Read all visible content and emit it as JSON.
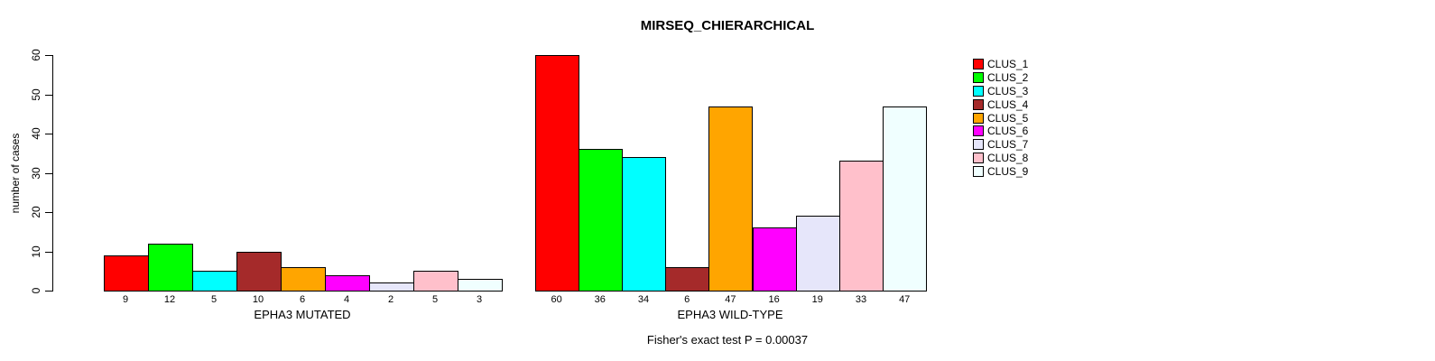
{
  "figure": {
    "background": "#ffffff",
    "text_color": "#000000"
  },
  "chart_data": {
    "type": "bar",
    "title": "MIRSEQ_CHIERARCHICAL",
    "ylabel": "number of cases",
    "xlabel": "",
    "ylim": [
      0,
      60
    ],
    "yticks": [
      0,
      10,
      20,
      30,
      40,
      50,
      60
    ],
    "grid": false,
    "bar_borders": "#000000",
    "categories": [
      "CLUS_1",
      "CLUS_2",
      "CLUS_3",
      "CLUS_4",
      "CLUS_5",
      "CLUS_6",
      "CLUS_7",
      "CLUS_8",
      "CLUS_9"
    ],
    "colors": [
      "#FF0000",
      "#00FF00",
      "#00FFFF",
      "#A52A2A",
      "#FFA500",
      "#FF00FF",
      "#E6E6FA",
      "#FFC0CB",
      "#F0FFFF"
    ],
    "series": [
      {
        "name": "EPHA3 MUTATED",
        "values": [
          9,
          12,
          5,
          10,
          6,
          4,
          2,
          5,
          3
        ]
      },
      {
        "name": "EPHA3 WILD-TYPE",
        "values": [
          60,
          36,
          34,
          6,
          47,
          16,
          19,
          33,
          47
        ]
      }
    ],
    "bar_value_labels_visible": true,
    "legend_position": "right",
    "legend": [
      "CLUS_1",
      "CLUS_2",
      "CLUS_3",
      "CLUS_4",
      "CLUS_5",
      "CLUS_6",
      "CLUS_7",
      "CLUS_8",
      "CLUS_9"
    ],
    "annotation": "Fisher's exact test P = 0.00037"
  }
}
